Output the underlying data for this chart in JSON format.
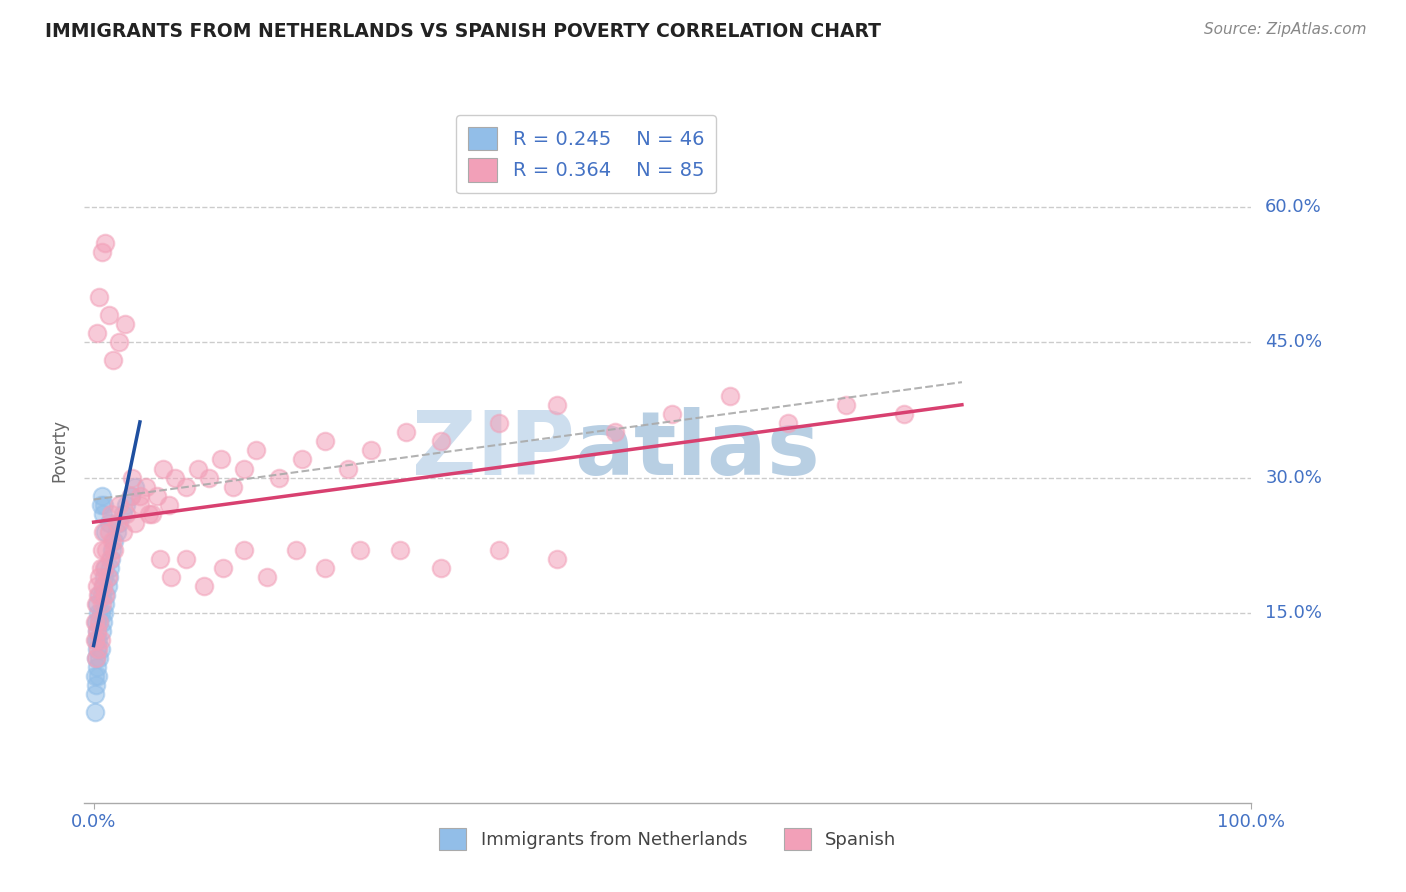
{
  "title": "IMMIGRANTS FROM NETHERLANDS VS SPANISH POVERTY CORRELATION CHART",
  "source": "Source: ZipAtlas.com",
  "ylabel": "Poverty",
  "watermark_part1": "ZIP",
  "watermark_part2": "atlas",
  "legend_r1": "R = 0.245",
  "legend_n1": "N = 46",
  "legend_r2": "R = 0.364",
  "legend_n2": "N = 85",
  "ytick_labels": [
    "15.0%",
    "30.0%",
    "45.0%",
    "60.0%"
  ],
  "ytick_values": [
    0.15,
    0.3,
    0.45,
    0.6
  ],
  "xtick_labels": [
    "0.0%",
    "100.0%"
  ],
  "xtick_values": [
    0.0,
    1.0
  ],
  "legend2_labels": [
    "Immigrants from Netherlands",
    "Spanish"
  ],
  "blue_color": "#92BEE8",
  "pink_color": "#F2A0B8",
  "blue_line_color": "#1E4FA0",
  "pink_line_color": "#D84070",
  "conf_line_color": "#AAAAAA",
  "background_color": "#FFFFFF",
  "grid_color": "#CCCCCC",
  "title_color": "#222222",
  "axis_label_color": "#4472C4",
  "ylabel_color": "#666666",
  "source_color": "#888888",
  "watermark_color1": "#B8D0E8",
  "watermark_color2": "#9BBBD8",
  "blue_x": [
    0.001,
    0.001,
    0.001,
    0.002,
    0.002,
    0.002,
    0.002,
    0.003,
    0.003,
    0.003,
    0.003,
    0.004,
    0.004,
    0.004,
    0.005,
    0.005,
    0.005,
    0.006,
    0.006,
    0.007,
    0.007,
    0.008,
    0.008,
    0.009,
    0.009,
    0.01,
    0.01,
    0.011,
    0.012,
    0.013,
    0.014,
    0.015,
    0.016,
    0.018,
    0.02,
    0.022,
    0.025,
    0.028,
    0.032,
    0.036,
    0.006,
    0.008,
    0.01,
    0.013,
    0.007,
    0.009
  ],
  "blue_y": [
    0.04,
    0.06,
    0.08,
    0.1,
    0.07,
    0.12,
    0.14,
    0.09,
    0.11,
    0.13,
    0.16,
    0.08,
    0.12,
    0.15,
    0.1,
    0.14,
    0.17,
    0.11,
    0.15,
    0.13,
    0.17,
    0.14,
    0.18,
    0.15,
    0.19,
    0.16,
    0.2,
    0.17,
    0.18,
    0.19,
    0.2,
    0.21,
    0.22,
    0.23,
    0.24,
    0.25,
    0.26,
    0.27,
    0.28,
    0.29,
    0.27,
    0.26,
    0.24,
    0.25,
    0.28,
    0.27
  ],
  "pink_x": [
    0.001,
    0.001,
    0.002,
    0.002,
    0.003,
    0.003,
    0.004,
    0.004,
    0.005,
    0.005,
    0.006,
    0.006,
    0.007,
    0.007,
    0.008,
    0.008,
    0.009,
    0.01,
    0.011,
    0.012,
    0.013,
    0.014,
    0.015,
    0.016,
    0.018,
    0.02,
    0.022,
    0.025,
    0.028,
    0.032,
    0.036,
    0.04,
    0.045,
    0.05,
    0.055,
    0.06,
    0.065,
    0.07,
    0.08,
    0.09,
    0.1,
    0.11,
    0.12,
    0.13,
    0.14,
    0.16,
    0.18,
    0.2,
    0.22,
    0.24,
    0.27,
    0.3,
    0.35,
    0.4,
    0.45,
    0.5,
    0.55,
    0.6,
    0.65,
    0.7,
    0.003,
    0.005,
    0.007,
    0.01,
    0.013,
    0.017,
    0.022,
    0.027,
    0.033,
    0.04,
    0.048,
    0.057,
    0.067,
    0.08,
    0.095,
    0.112,
    0.13,
    0.15,
    0.175,
    0.2,
    0.23,
    0.265,
    0.3,
    0.35,
    0.4
  ],
  "pink_y": [
    0.12,
    0.14,
    0.1,
    0.16,
    0.13,
    0.18,
    0.11,
    0.17,
    0.14,
    0.19,
    0.12,
    0.2,
    0.16,
    0.22,
    0.18,
    0.24,
    0.2,
    0.17,
    0.22,
    0.19,
    0.24,
    0.21,
    0.26,
    0.23,
    0.22,
    0.25,
    0.27,
    0.24,
    0.26,
    0.28,
    0.25,
    0.27,
    0.29,
    0.26,
    0.28,
    0.31,
    0.27,
    0.3,
    0.29,
    0.31,
    0.3,
    0.32,
    0.29,
    0.31,
    0.33,
    0.3,
    0.32,
    0.34,
    0.31,
    0.33,
    0.35,
    0.34,
    0.36,
    0.38,
    0.35,
    0.37,
    0.39,
    0.36,
    0.38,
    0.37,
    0.46,
    0.5,
    0.55,
    0.56,
    0.48,
    0.43,
    0.45,
    0.47,
    0.3,
    0.28,
    0.26,
    0.21,
    0.19,
    0.21,
    0.18,
    0.2,
    0.22,
    0.19,
    0.22,
    0.2,
    0.22,
    0.22,
    0.2,
    0.22,
    0.21
  ],
  "xlim": [
    -0.008,
    1.0
  ],
  "ylim": [
    -0.06,
    0.72
  ],
  "blue_xline_end": 0.04,
  "pink_xline_end": 0.75
}
